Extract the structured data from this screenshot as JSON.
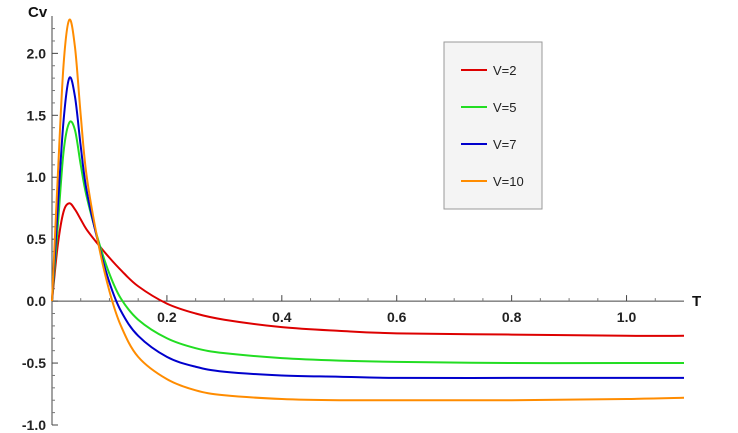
{
  "chart_data": {
    "type": "line",
    "title": "",
    "xlabel": "T",
    "ylabel": "Cv",
    "xlim": [
      0,
      1.1
    ],
    "ylim": [
      -1.0,
      2.35
    ],
    "x_ticks": [
      0.2,
      0.4,
      0.6,
      0.8,
      1.0
    ],
    "x_tick_labels": [
      "0.2",
      "0.4",
      "0.6",
      "0.8",
      "1.0"
    ],
    "y_ticks": [
      -1.0,
      -0.5,
      0.0,
      0.5,
      1.0,
      1.5,
      2.0
    ],
    "y_tick_labels": [
      "-1.0",
      "-0.5",
      "0.0",
      "0.5",
      "1.0",
      "1.5",
      "2.0"
    ],
    "grid": false,
    "legend_position": "top-right",
    "series": [
      {
        "name": "V=2",
        "color": "#dd0000",
        "x": [
          0.0,
          0.01,
          0.02,
          0.03,
          0.04,
          0.05,
          0.06,
          0.08,
          0.1,
          0.12,
          0.15,
          0.2,
          0.25,
          0.3,
          0.4,
          0.5,
          0.6,
          0.8,
          1.0,
          1.1
        ],
        "y": [
          0.0,
          0.45,
          0.72,
          0.79,
          0.74,
          0.66,
          0.58,
          0.46,
          0.35,
          0.25,
          0.12,
          -0.02,
          -0.1,
          -0.15,
          -0.21,
          -0.24,
          -0.26,
          -0.27,
          -0.28,
          -0.28
        ]
      },
      {
        "name": "V=5",
        "color": "#22dd22",
        "x": [
          0.0,
          0.01,
          0.02,
          0.03,
          0.04,
          0.05,
          0.06,
          0.08,
          0.1,
          0.12,
          0.15,
          0.2,
          0.25,
          0.3,
          0.4,
          0.5,
          0.6,
          0.8,
          1.0,
          1.1
        ],
        "y": [
          0.0,
          0.6,
          1.2,
          1.44,
          1.38,
          1.1,
          0.85,
          0.5,
          0.22,
          0.02,
          -0.15,
          -0.3,
          -0.38,
          -0.42,
          -0.46,
          -0.48,
          -0.49,
          -0.5,
          -0.5,
          -0.5
        ]
      },
      {
        "name": "V=7",
        "color": "#0000cc",
        "x": [
          0.0,
          0.01,
          0.02,
          0.03,
          0.04,
          0.05,
          0.06,
          0.08,
          0.1,
          0.12,
          0.15,
          0.2,
          0.25,
          0.3,
          0.4,
          0.5,
          0.6,
          0.8,
          1.0,
          1.1
        ],
        "y": [
          0.0,
          0.75,
          1.45,
          1.8,
          1.65,
          1.25,
          0.9,
          0.48,
          0.15,
          -0.08,
          -0.28,
          -0.45,
          -0.53,
          -0.57,
          -0.6,
          -0.61,
          -0.62,
          -0.62,
          -0.62,
          -0.62
        ]
      },
      {
        "name": "V=10",
        "color": "#ff8c00",
        "x": [
          0.0,
          0.01,
          0.02,
          0.03,
          0.04,
          0.05,
          0.06,
          0.08,
          0.1,
          0.12,
          0.15,
          0.2,
          0.25,
          0.3,
          0.4,
          0.5,
          0.6,
          0.7,
          0.8,
          1.0,
          1.1
        ],
        "y": [
          0.0,
          1.0,
          1.9,
          2.27,
          2.05,
          1.5,
          1.02,
          0.48,
          0.08,
          -0.2,
          -0.45,
          -0.63,
          -0.72,
          -0.76,
          -0.79,
          -0.8,
          -0.8,
          -0.8,
          -0.8,
          -0.79,
          -0.78
        ]
      }
    ]
  }
}
